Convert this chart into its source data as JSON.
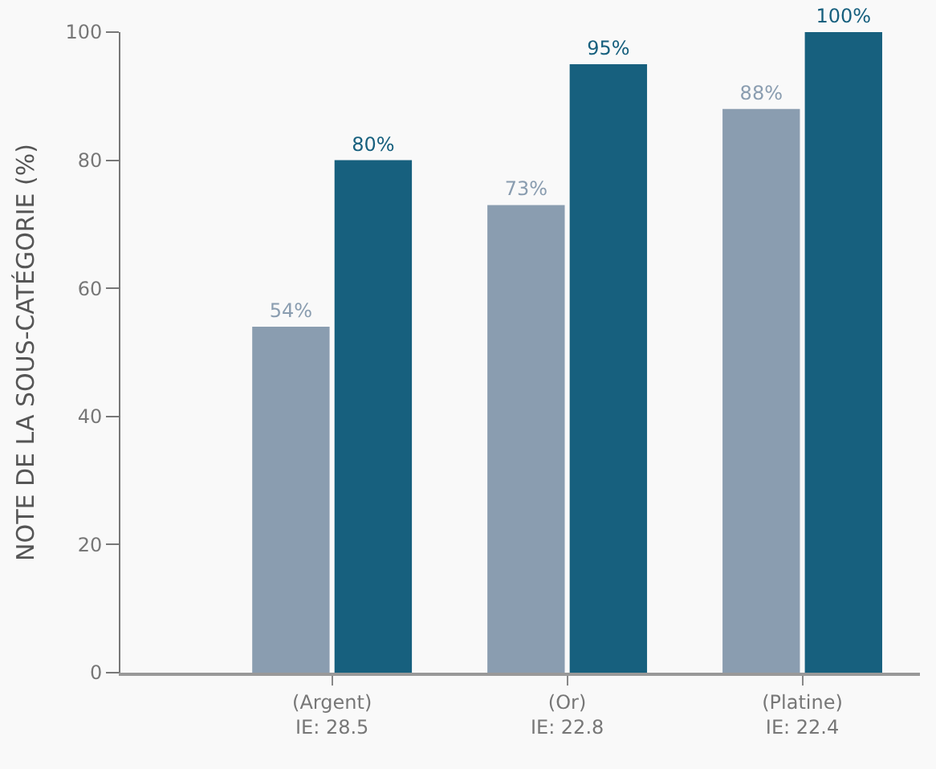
{
  "chart_data": {
    "type": "bar",
    "ylabel": "NOTE DE LA SOUS-CATÉGORIE (%)",
    "categories": [
      "(Argent)\nIE: 28.5",
      "(Or)\nIE: 22.8",
      "(Platine)\nIE: 22.4"
    ],
    "series": [
      {
        "color": "#8a9db0",
        "values": [
          54,
          73,
          88
        ],
        "value_labels": [
          "54%",
          "73%",
          "88%"
        ]
      },
      {
        "color": "#17607e",
        "values": [
          80,
          95,
          100
        ],
        "value_labels": [
          "80%",
          "95%",
          "100%"
        ]
      }
    ],
    "ylim": [
      0,
      100
    ],
    "yticks": [
      0,
      20,
      40,
      60,
      80,
      100
    ],
    "grid": false,
    "legend": false
  }
}
